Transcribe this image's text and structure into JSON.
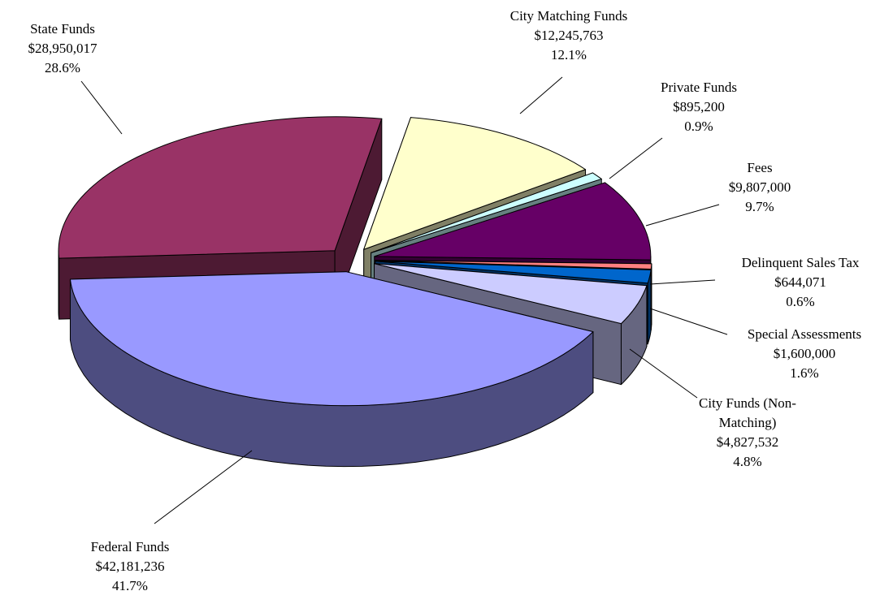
{
  "chart_data": {
    "type": "pie3d",
    "categories": [
      "City Matching Funds",
      "Private Funds",
      "Fees",
      "Delinquent Sales Tax",
      "Special Assessments",
      "City Funds (Non-Matching)",
      "Federal Funds",
      "State Funds"
    ],
    "values": [
      12245763,
      895200,
      9807000,
      644071,
      1600000,
      4827532,
      42181236,
      28950017
    ],
    "value_labels": [
      "$12,245,763",
      "$895,200",
      "$9,807,000",
      "$644,071",
      "$1,600,000",
      "$4,827,532",
      "$42,181,236",
      "$28,950,017"
    ],
    "percent_labels": [
      "12.1%",
      "0.9%",
      "9.7%",
      "0.6%",
      "1.6%",
      "4.8%",
      "41.7%",
      "28.6%"
    ],
    "colors": [
      "#ffffcc",
      "#ccffff",
      "#660066",
      "#ff8080",
      "#0066cc",
      "#ccccff",
      "#9999ff",
      "#993366"
    ]
  }
}
